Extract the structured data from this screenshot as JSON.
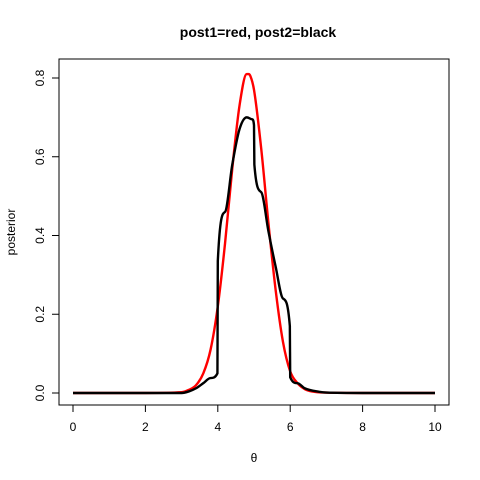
{
  "chart_data": {
    "type": "line",
    "title": "post1=red, post2=black",
    "xlabel": "θ",
    "ylabel": "posterior",
    "xlim": [
      0,
      10
    ],
    "ylim": [
      0,
      0.82
    ],
    "xticks": [
      "0",
      "2",
      "4",
      "6",
      "8",
      "10"
    ],
    "yticks": [
      "0.0",
      "0.2",
      "0.4",
      "0.6",
      "0.8"
    ],
    "grid": false,
    "legend": "none",
    "series": [
      {
        "color": "#ff0000",
        "x": [
          0,
          2,
          3.0,
          3.2,
          3.4,
          3.6,
          3.8,
          4.0,
          4.2,
          4.4,
          4.6,
          4.8,
          4.85,
          4.9,
          5.0,
          5.2,
          5.4,
          5.6,
          5.8,
          6.0,
          6.2,
          6.4,
          6.6,
          7.0,
          8,
          10
        ],
        "y": [
          0,
          0,
          0.002,
          0.008,
          0.02,
          0.05,
          0.11,
          0.22,
          0.38,
          0.57,
          0.73,
          0.81,
          0.81,
          0.805,
          0.77,
          0.62,
          0.43,
          0.26,
          0.13,
          0.055,
          0.025,
          0.01,
          0.004,
          0.001,
          0,
          0
        ]
      },
      {
        "color": "#000000",
        "x": [
          0,
          3.0,
          3.2,
          3.4,
          3.6,
          3.8,
          3.99,
          4.0,
          4.2,
          4.4,
          4.6,
          4.8,
          4.95,
          5.0,
          5.01,
          5.2,
          5.4,
          5.6,
          5.8,
          5.99,
          6.0,
          6.2,
          6.4,
          6.8,
          7.0,
          8,
          10
        ],
        "y": [
          0,
          0,
          0.004,
          0.012,
          0.025,
          0.038,
          0.05,
          0.335,
          0.46,
          0.58,
          0.67,
          0.7,
          0.695,
          0.68,
          0.58,
          0.51,
          0.41,
          0.32,
          0.24,
          0.17,
          0.04,
          0.025,
          0.012,
          0.003,
          0.001,
          0,
          0
        ]
      }
    ]
  }
}
